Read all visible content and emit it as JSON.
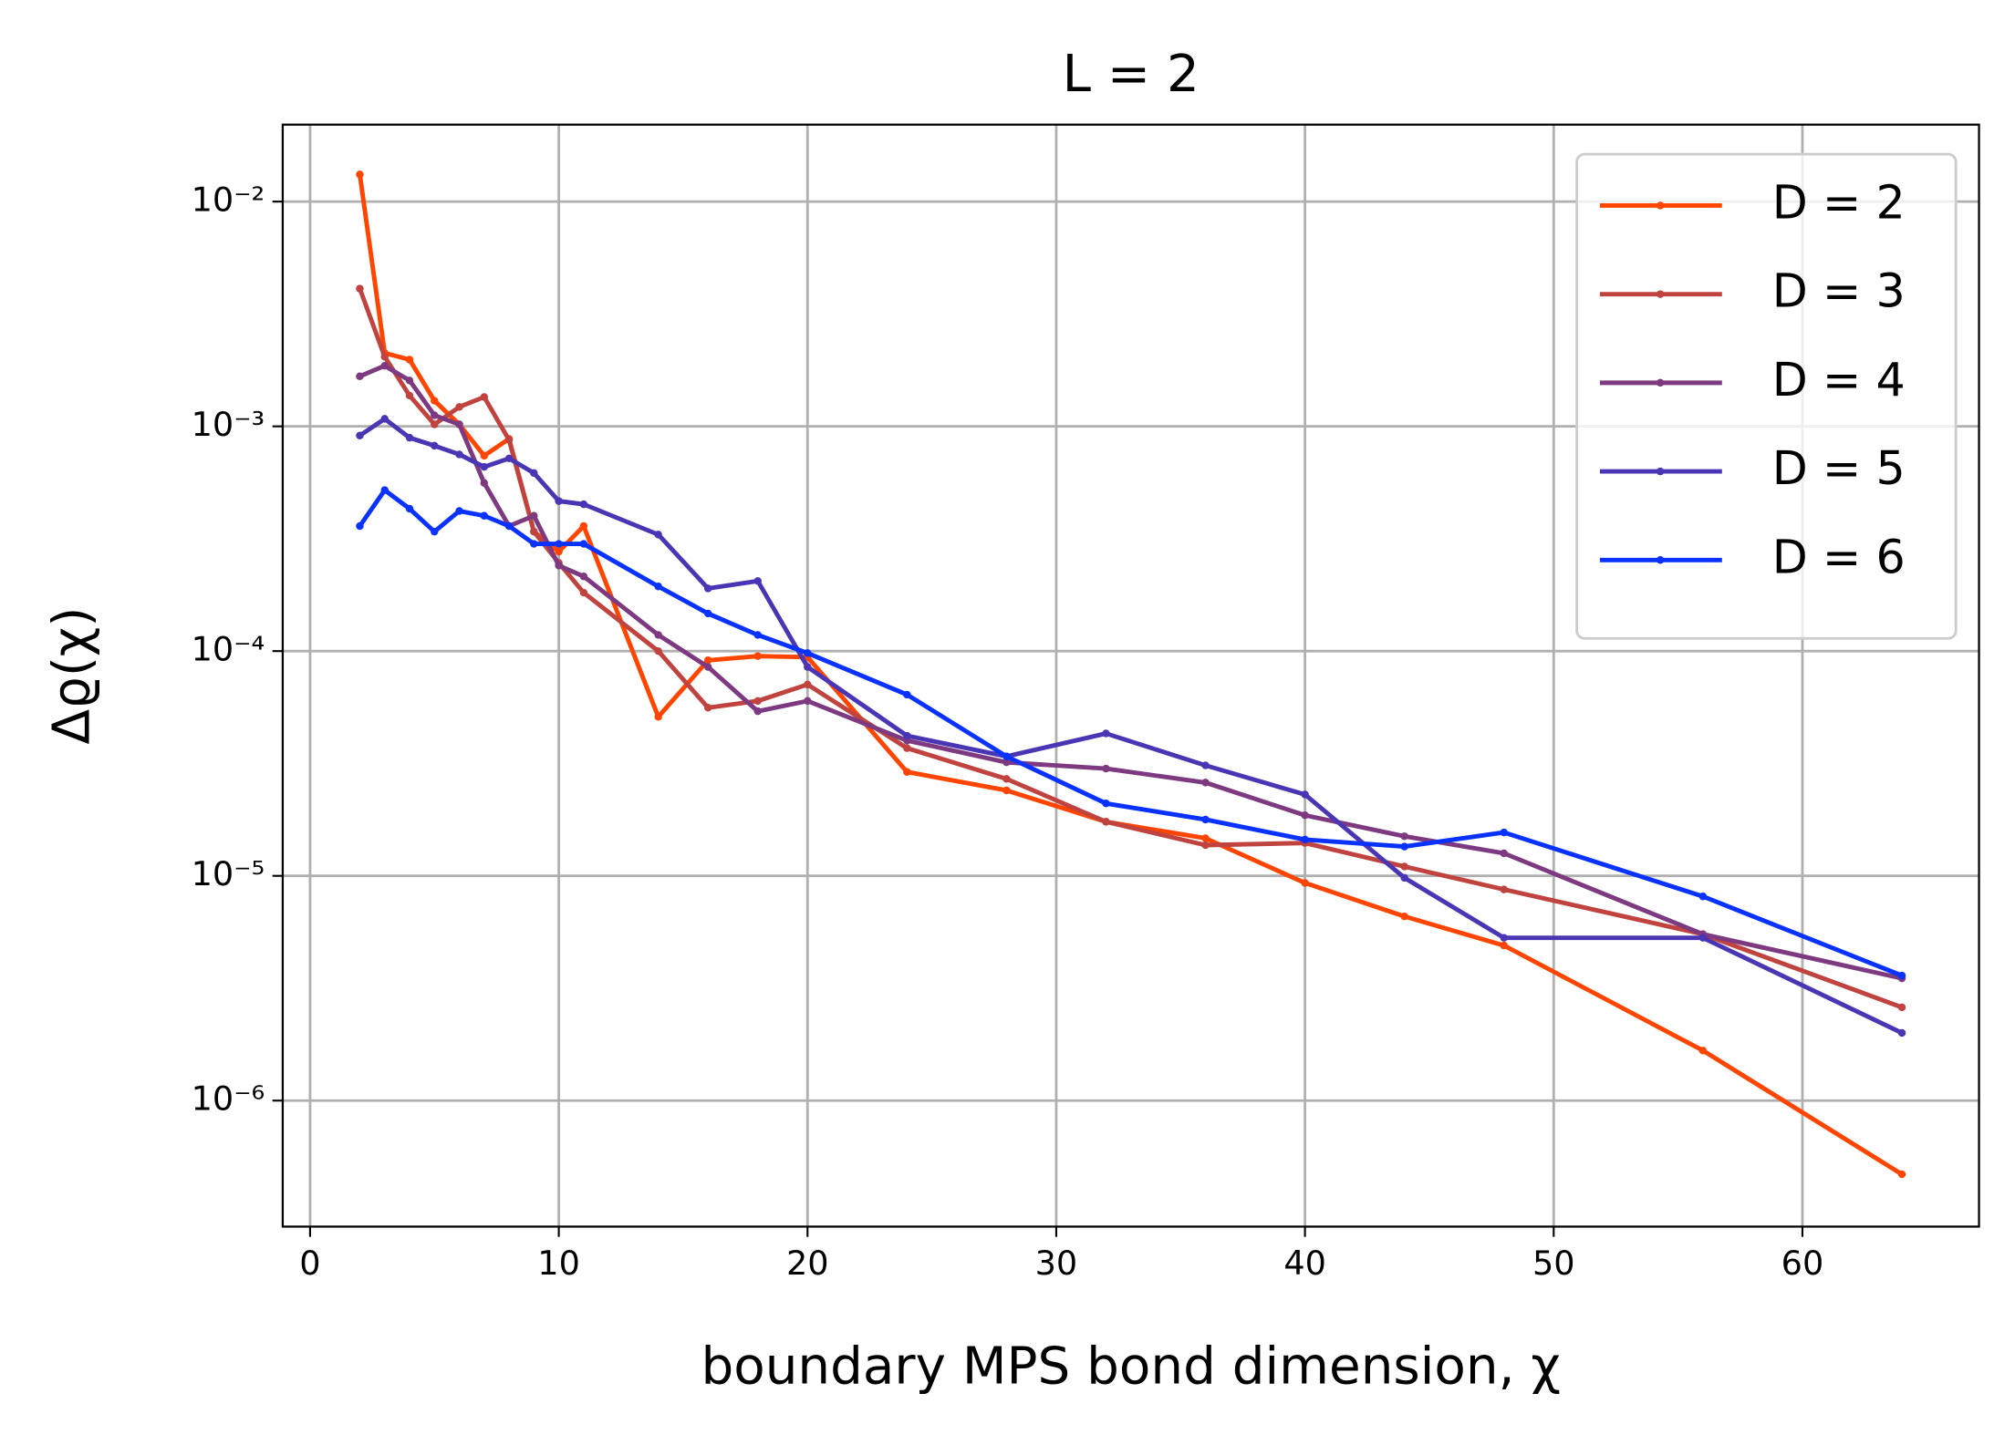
{
  "chart_data": {
    "type": "line",
    "title": "L = 2",
    "xlabel": "boundary MPS bond dimension, χ",
    "ylabel": "Δϱ(χ)",
    "x": [
      2,
      3,
      4,
      5,
      6,
      7,
      8,
      9,
      10,
      11,
      14,
      16,
      18,
      20,
      24,
      28,
      32,
      36,
      40,
      44,
      48,
      56,
      64
    ],
    "series": [
      {
        "name": "D = 2",
        "color": "#ff4500",
        "values": [
          0.0132,
          0.00212,
          0.00198,
          0.0013,
          0.00102,
          0.00074,
          0.00088,
          0.00034,
          0.000277,
          0.00036,
          5.1e-05,
          9.1e-05,
          9.5e-05,
          9.4e-05,
          2.9e-05,
          2.4e-05,
          1.74e-05,
          1.47e-05,
          9.3e-06,
          6.6e-06,
          4.9e-06,
          1.67e-06,
          4.7e-07
        ]
      },
      {
        "name": "D = 3",
        "color": "#c0433f",
        "values": [
          0.0041,
          0.00204,
          0.00137,
          0.00102,
          0.00122,
          0.00135,
          0.00087,
          0.00034,
          0.000247,
          0.000182,
          0.0001,
          5.6e-05,
          6e-05,
          7.1e-05,
          3.7e-05,
          2.7e-05,
          1.74e-05,
          1.37e-05,
          1.4e-05,
          1.1e-05,
          8.7e-06,
          5.5e-06,
          2.6e-06
        ]
      },
      {
        "name": "D = 4",
        "color": "#7d3a80",
        "values": [
          0.00167,
          0.00186,
          0.0016,
          0.00112,
          0.00102,
          0.00056,
          0.00036,
          0.0004,
          0.00024,
          0.000215,
          0.000118,
          8.5e-05,
          5.4e-05,
          6e-05,
          4e-05,
          3.2e-05,
          3e-05,
          2.6e-05,
          1.86e-05,
          1.5e-05,
          1.26e-05,
          5.5e-06,
          3.5e-06
        ]
      },
      {
        "name": "D = 5",
        "color": "#4a36b5",
        "values": [
          0.00091,
          0.00108,
          0.00089,
          0.00082,
          0.00075,
          0.00066,
          0.00072,
          0.00062,
          0.000465,
          0.00045,
          0.00033,
          0.00019,
          0.000205,
          8.5e-05,
          4.2e-05,
          3.4e-05,
          4.3e-05,
          3.1e-05,
          2.3e-05,
          9.8e-06,
          5.3e-06,
          5.3e-06,
          2e-06
        ]
      },
      {
        "name": "D = 6",
        "color": "#0a32ff",
        "values": [
          0.00036,
          0.00052,
          0.00043,
          0.00034,
          0.00042,
          0.0004,
          0.00036,
          0.0003,
          0.0003,
          0.0003,
          0.000194,
          0.000147,
          0.000118,
          9.8e-05,
          6.4e-05,
          3.4e-05,
          2.1e-05,
          1.78e-05,
          1.45e-05,
          1.35e-05,
          1.56e-05,
          8.1e-06,
          3.6e-06
        ]
      }
    ],
    "xlim": [
      -1.1,
      67.1
    ],
    "xticks": [
      0,
      10,
      20,
      30,
      40,
      50,
      60
    ],
    "ylim": [
      2.75e-07,
      0.022
    ],
    "log_y": true,
    "yticks": [
      {
        "value": 0.01,
        "label": "10⁻²"
      },
      {
        "value": 0.001,
        "label": "10⁻³"
      },
      {
        "value": 0.0001,
        "label": "10⁻⁴"
      },
      {
        "value": 1e-05,
        "label": "10⁻⁵"
      },
      {
        "value": 1e-06,
        "label": "10⁻⁶"
      }
    ],
    "grid": true,
    "legend": "upper right"
  }
}
